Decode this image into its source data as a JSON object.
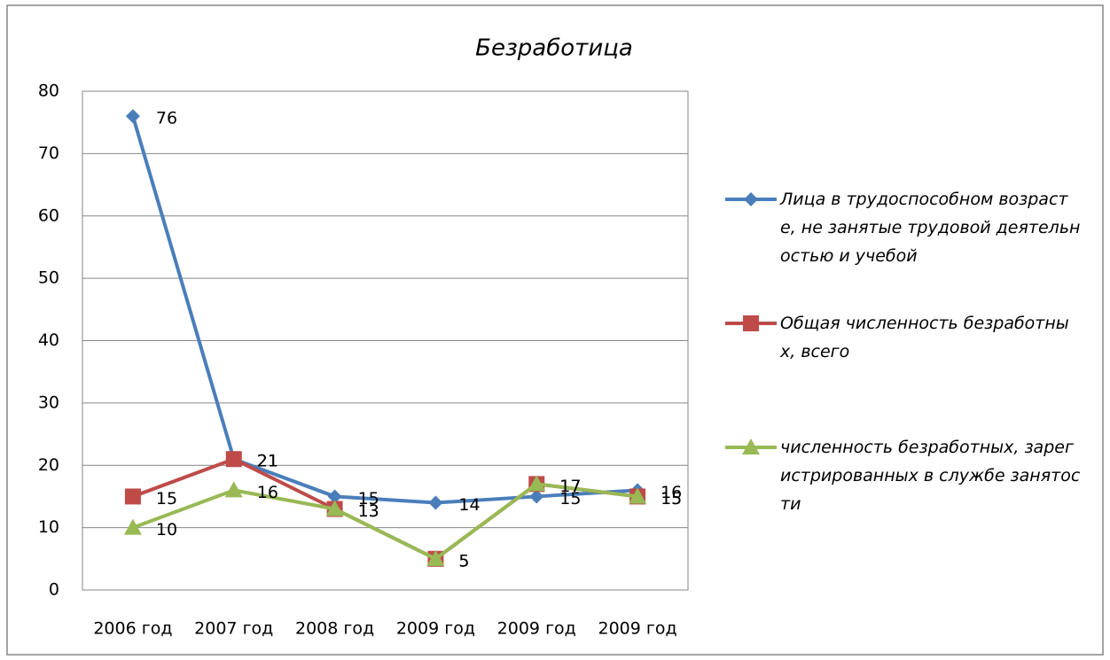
{
  "chart_data": {
    "type": "line",
    "title": "Безработица",
    "categories": [
      "2006 год",
      "2007 год",
      "2008 год",
      "2009 год",
      "2009 год",
      "2009 год"
    ],
    "series": [
      {
        "name": "Лица в трудоспособном возрасте, не занятые трудовой деятельностью и учебой",
        "color": "#4a7ebb",
        "marker": "diamond",
        "values": [
          76,
          21,
          15,
          14,
          15,
          16
        ]
      },
      {
        "name": "Общая численность безработных, всего",
        "color": "#be4b48",
        "marker": "square",
        "values": [
          15,
          21,
          13,
          5,
          17,
          15
        ]
      },
      {
        "name": "численность безработных, зарегистрированных в службе занятости",
        "color": "#98b954",
        "marker": "triangle",
        "values": [
          10,
          16,
          13,
          5,
          17,
          15
        ]
      }
    ],
    "ylim": [
      0,
      80
    ],
    "yticks": [
      0,
      10,
      20,
      30,
      40,
      50,
      60,
      70,
      80
    ],
    "grid": true,
    "legend": "right"
  }
}
